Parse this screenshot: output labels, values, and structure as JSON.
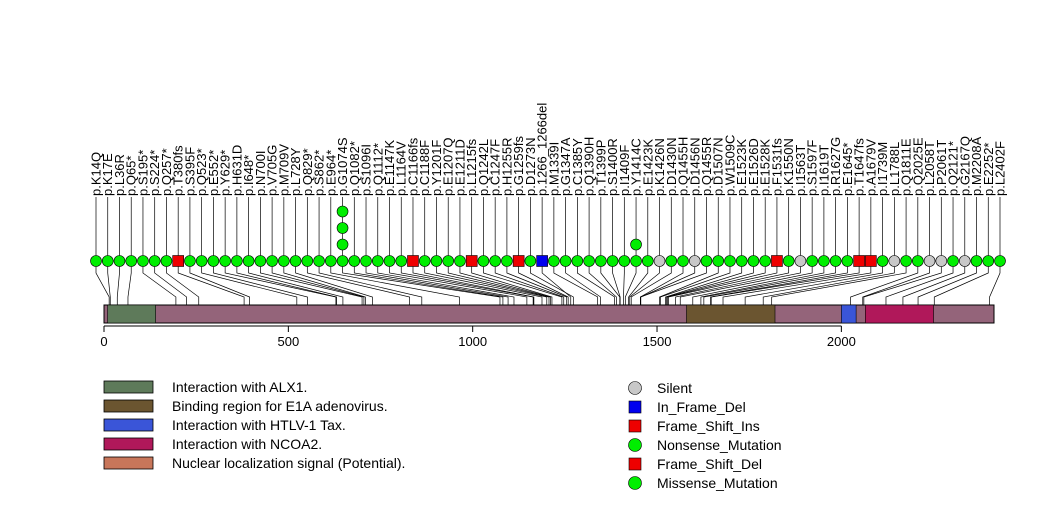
{
  "chart_data": {
    "type": "lollipop",
    "protein_length": 2414,
    "axis": {
      "range": [
        0,
        2414
      ],
      "ticks": [
        0,
        500,
        1000,
        1500,
        2000
      ],
      "tick_labels": [
        "0",
        "500",
        "1000",
        "1500",
        "2000"
      ]
    },
    "domains": [
      {
        "name": "Interaction with ALX1.",
        "start": 10,
        "end": 140,
        "color": "#5e7a5a"
      },
      {
        "name": "Binding region for E1A adenovirus.",
        "start": 1580,
        "end": 1820,
        "color": "#6b5530"
      },
      {
        "name": "Interaction with HTLV-1 Tax.",
        "start": 2000,
        "end": 2040,
        "color": "#3a55d8"
      },
      {
        "name": "Interaction with NCOA2.",
        "start": 2065,
        "end": 2250,
        "color": "#b0185a"
      },
      {
        "name": "Nuclear localization signal (Potential).",
        "start": 0,
        "end": 0,
        "color": "#c8765a"
      }
    ],
    "legend": [
      {
        "label": "Silent",
        "color": "#c8c8c8",
        "shape": "circle"
      },
      {
        "label": "In_Frame_Del",
        "color": "#0000ee",
        "shape": "square"
      },
      {
        "label": "Frame_Shift_Ins",
        "color": "#ee0000",
        "shape": "square"
      },
      {
        "label": "Nonsense_Mutation",
        "color": "#00ee00",
        "shape": "circle"
      },
      {
        "label": "Frame_Shift_Del",
        "color": "#ee0000",
        "shape": "square"
      },
      {
        "label": "Missense_Mutation",
        "color": "#00ee00",
        "shape": "circle"
      }
    ],
    "mutations": [
      {
        "label": "p.K14Q",
        "pos": 14,
        "type": "Missense_Mutation",
        "count": 1
      },
      {
        "label": "p.K17E",
        "pos": 17,
        "type": "Missense_Mutation",
        "count": 1
      },
      {
        "label": "p.L36R",
        "pos": 36,
        "type": "Missense_Mutation",
        "count": 1
      },
      {
        "label": "p.Q65*",
        "pos": 65,
        "type": "Nonsense_Mutation",
        "count": 1
      },
      {
        "label": "p.S195*",
        "pos": 195,
        "type": "Nonsense_Mutation",
        "count": 1
      },
      {
        "label": "p.S224*",
        "pos": 224,
        "type": "Nonsense_Mutation",
        "count": 1
      },
      {
        "label": "p.Q257*",
        "pos": 257,
        "type": "Nonsense_Mutation",
        "count": 1
      },
      {
        "label": "p.T380fs",
        "pos": 380,
        "type": "Frame_Shift_Del",
        "count": 1
      },
      {
        "label": "p.S395F",
        "pos": 395,
        "type": "Missense_Mutation",
        "count": 1
      },
      {
        "label": "p.Q523*",
        "pos": 523,
        "type": "Nonsense_Mutation",
        "count": 1
      },
      {
        "label": "p.E552*",
        "pos": 552,
        "type": "Nonsense_Mutation",
        "count": 1
      },
      {
        "label": "p.Y629*",
        "pos": 629,
        "type": "Nonsense_Mutation",
        "count": 1
      },
      {
        "label": "p.H631D",
        "pos": 631,
        "type": "Missense_Mutation",
        "count": 1
      },
      {
        "label": "p.I648*",
        "pos": 648,
        "type": "Nonsense_Mutation",
        "count": 1
      },
      {
        "label": "p.N700I",
        "pos": 700,
        "type": "Missense_Mutation",
        "count": 1
      },
      {
        "label": "p.V705G",
        "pos": 705,
        "type": "Missense_Mutation",
        "count": 1
      },
      {
        "label": "p.M709V",
        "pos": 709,
        "type": "Missense_Mutation",
        "count": 1
      },
      {
        "label": "p.L728Y",
        "pos": 728,
        "type": "Missense_Mutation",
        "count": 1
      },
      {
        "label": "p.Q829*",
        "pos": 829,
        "type": "Nonsense_Mutation",
        "count": 1
      },
      {
        "label": "p.S862*",
        "pos": 862,
        "type": "Nonsense_Mutation",
        "count": 1
      },
      {
        "label": "p.E964*",
        "pos": 964,
        "type": "Nonsense_Mutation",
        "count": 1
      },
      {
        "label": "p.G1074S",
        "pos": 1074,
        "type": "Missense_Mutation",
        "count": 4
      },
      {
        "label": "p.Q1082*",
        "pos": 1082,
        "type": "Nonsense_Mutation",
        "count": 1
      },
      {
        "label": "p.S1096I",
        "pos": 1096,
        "type": "Missense_Mutation",
        "count": 1
      },
      {
        "label": "p.Q1112*",
        "pos": 1112,
        "type": "Nonsense_Mutation",
        "count": 1
      },
      {
        "label": "p.E1147K",
        "pos": 1147,
        "type": "Missense_Mutation",
        "count": 1
      },
      {
        "label": "p.L1164V",
        "pos": 1164,
        "type": "Missense_Mutation",
        "count": 1
      },
      {
        "label": "p.C1166fs",
        "pos": 1166,
        "type": "Frame_Shift_Del",
        "count": 1
      },
      {
        "label": "p.C1188F",
        "pos": 1188,
        "type": "Missense_Mutation",
        "count": 1
      },
      {
        "label": "p.Y1201F",
        "pos": 1201,
        "type": "Missense_Mutation",
        "count": 1
      },
      {
        "label": "p.E1207Q",
        "pos": 1207,
        "type": "Missense_Mutation",
        "count": 1
      },
      {
        "label": "p.E1211D",
        "pos": 1211,
        "type": "Missense_Mutation",
        "count": 1
      },
      {
        "label": "p.L1215fs",
        "pos": 1215,
        "type": "Frame_Shift_Del",
        "count": 1
      },
      {
        "label": "p.Q1242L",
        "pos": 1242,
        "type": "Missense_Mutation",
        "count": 1
      },
      {
        "label": "p.C1247F",
        "pos": 1247,
        "type": "Missense_Mutation",
        "count": 1
      },
      {
        "label": "p.H1255R",
        "pos": 1255,
        "type": "Missense_Mutation",
        "count": 1
      },
      {
        "label": "p.G1259fs",
        "pos": 1259,
        "type": "Frame_Shift_Del",
        "count": 1
      },
      {
        "label": "p.D1273N",
        "pos": 1273,
        "type": "Missense_Mutation",
        "count": 1
      },
      {
        "label": "p.1266_1266del",
        "pos": 1266,
        "type": "In_Frame_Del",
        "count": 1
      },
      {
        "label": "p.M1339I",
        "pos": 1339,
        "type": "Missense_Mutation",
        "count": 1
      },
      {
        "label": "p.G1347A",
        "pos": 1347,
        "type": "Missense_Mutation",
        "count": 1
      },
      {
        "label": "p.C1385Y",
        "pos": 1385,
        "type": "Missense_Mutation",
        "count": 1
      },
      {
        "label": "p.Q1390H",
        "pos": 1390,
        "type": "Missense_Mutation",
        "count": 1
      },
      {
        "label": "p.T1399P",
        "pos": 1399,
        "type": "Missense_Mutation",
        "count": 1
      },
      {
        "label": "p.S1400R",
        "pos": 1400,
        "type": "Missense_Mutation",
        "count": 1
      },
      {
        "label": "p.I1409F",
        "pos": 1409,
        "type": "Missense_Mutation",
        "count": 1
      },
      {
        "label": "p.Y1414C",
        "pos": 1414,
        "type": "Missense_Mutation",
        "count": 2
      },
      {
        "label": "p.E1423K",
        "pos": 1423,
        "type": "Missense_Mutation",
        "count": 1
      },
      {
        "label": "p.K1426N",
        "pos": 1426,
        "type": "Silent",
        "count": 1
      },
      {
        "label": "p.D1430N",
        "pos": 1430,
        "type": "Missense_Mutation",
        "count": 1
      },
      {
        "label": "p.Q1455H",
        "pos": 1455,
        "type": "Missense_Mutation",
        "count": 1
      },
      {
        "label": "p.D1456N",
        "pos": 1456,
        "type": "Silent",
        "count": 1
      },
      {
        "label": "p.Q1455R",
        "pos": 1455,
        "type": "Missense_Mutation",
        "count": 1
      },
      {
        "label": "p.D1507N",
        "pos": 1507,
        "type": "Missense_Mutation",
        "count": 1
      },
      {
        "label": "p.W1509C",
        "pos": 1509,
        "type": "Missense_Mutation",
        "count": 1
      },
      {
        "label": "p.E1523K",
        "pos": 1523,
        "type": "Missense_Mutation",
        "count": 1
      },
      {
        "label": "p.E1526D",
        "pos": 1526,
        "type": "Missense_Mutation",
        "count": 1
      },
      {
        "label": "p.E1528K",
        "pos": 1528,
        "type": "Missense_Mutation",
        "count": 1
      },
      {
        "label": "p.F1531fs",
        "pos": 1531,
        "type": "Frame_Shift_Ins",
        "count": 1
      },
      {
        "label": "p.K1550N",
        "pos": 1550,
        "type": "Missense_Mutation",
        "count": 1
      },
      {
        "label": "p.I1563T",
        "pos": 1563,
        "type": "Silent",
        "count": 1
      },
      {
        "label": "p.S1597F",
        "pos": 1597,
        "type": "Missense_Mutation",
        "count": 1
      },
      {
        "label": "p.I1619T",
        "pos": 1619,
        "type": "Missense_Mutation",
        "count": 1
      },
      {
        "label": "p.R1627G",
        "pos": 1627,
        "type": "Missense_Mutation",
        "count": 1
      },
      {
        "label": "p.E1645*",
        "pos": 1645,
        "type": "Nonsense_Mutation",
        "count": 1
      },
      {
        "label": "p.T1647fs",
        "pos": 1647,
        "type": "Frame_Shift_Del",
        "count": 1
      },
      {
        "label": "p.A1679V",
        "pos": 1679,
        "type": "Frame_Shift_Del",
        "count": 1
      },
      {
        "label": "p.I1739M",
        "pos": 1739,
        "type": "Missense_Mutation",
        "count": 1
      },
      {
        "label": "p.L1788L",
        "pos": 1788,
        "type": "Silent",
        "count": 1
      },
      {
        "label": "p.Q1811E",
        "pos": 1811,
        "type": "Missense_Mutation",
        "count": 1
      },
      {
        "label": "p.Q2025E",
        "pos": 2025,
        "type": "Missense_Mutation",
        "count": 1
      },
      {
        "label": "p.L2058T",
        "pos": 2058,
        "type": "Silent",
        "count": 1
      },
      {
        "label": "p.P2061T",
        "pos": 2061,
        "type": "Silent",
        "count": 1
      },
      {
        "label": "p.Q2121*",
        "pos": 2121,
        "type": "Nonsense_Mutation",
        "count": 1
      },
      {
        "label": "p.G2167Q",
        "pos": 2167,
        "type": "Silent",
        "count": 1
      },
      {
        "label": "p.M2208A",
        "pos": 2208,
        "type": "Missense_Mutation",
        "count": 1
      },
      {
        "label": "p.E2252*",
        "pos": 2252,
        "type": "Nonsense_Mutation",
        "count": 1
      },
      {
        "label": "p.L2402F",
        "pos": 2402,
        "type": "Missense_Mutation",
        "count": 1
      }
    ]
  }
}
